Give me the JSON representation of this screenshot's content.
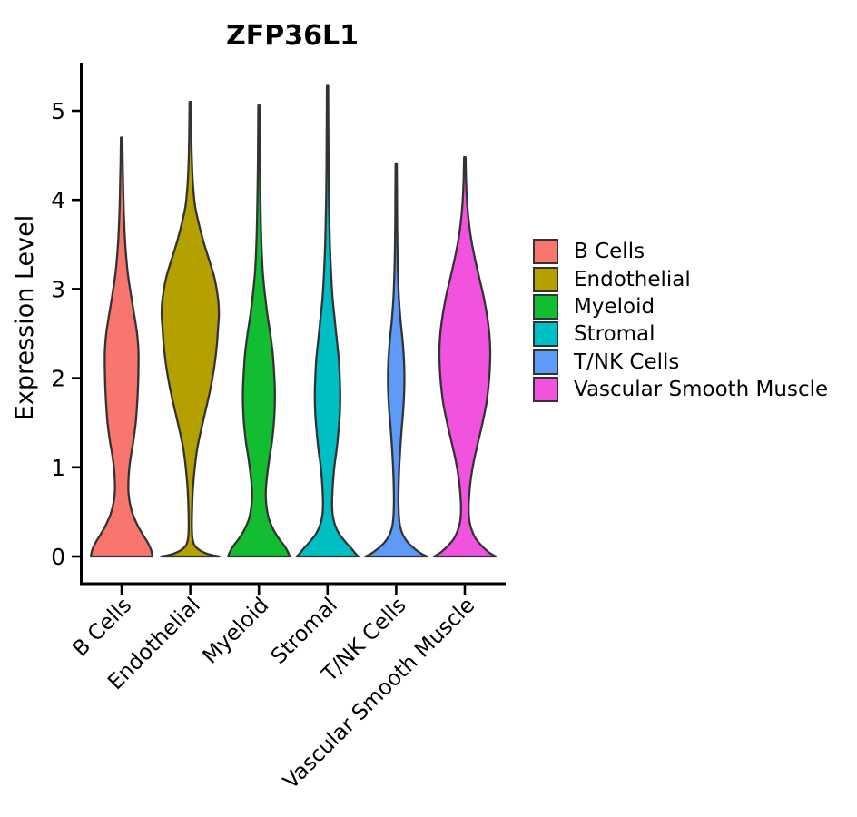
{
  "chart_data": {
    "type": "violin",
    "title": "ZFP36L1",
    "xlabel": "",
    "ylabel": "Expression Level",
    "categories": [
      "B Cells",
      "Endothelial",
      "Myeloid",
      "Stromal",
      "T/NK Cells",
      "Vascular Smooth Muscle"
    ],
    "y_ticks": [
      0,
      1,
      2,
      3,
      4,
      5
    ],
    "ylim": [
      0,
      5.5
    ],
    "grid": false,
    "legend_position": "right",
    "background_color": "#ffffff",
    "axis_color": "#000000",
    "outline_color": "#333333",
    "series": [
      {
        "name": "B Cells",
        "color": "#F8766D",
        "max_expression": 4.7,
        "min_expression": 0,
        "density_profile": [
          [
            4.7,
            0.8
          ],
          [
            4.4,
            1.2
          ],
          [
            4.1,
            1.8
          ],
          [
            3.8,
            2.6
          ],
          [
            3.5,
            4.0
          ],
          [
            3.2,
            6.5
          ],
          [
            2.95,
            10.0
          ],
          [
            2.7,
            14.0
          ],
          [
            2.5,
            17.0
          ],
          [
            2.3,
            18.5
          ],
          [
            2.1,
            18.5
          ],
          [
            1.9,
            18.0
          ],
          [
            1.7,
            17.0
          ],
          [
            1.5,
            15.5
          ],
          [
            1.3,
            13.0
          ],
          [
            1.15,
            10.5
          ],
          [
            1.0,
            8.5
          ],
          [
            0.85,
            7.5
          ],
          [
            0.72,
            7.5
          ],
          [
            0.6,
            9.0
          ],
          [
            0.48,
            12.0
          ],
          [
            0.36,
            17.0
          ],
          [
            0.25,
            23.0
          ],
          [
            0.15,
            29.0
          ],
          [
            0.07,
            32.5
          ],
          [
            0.0,
            34.0
          ]
        ]
      },
      {
        "name": "Endothelial",
        "color": "#B4A100",
        "max_expression": 5.1,
        "min_expression": 0,
        "density_profile": [
          [
            5.1,
            0.8
          ],
          [
            4.8,
            1.1
          ],
          [
            4.5,
            1.6
          ],
          [
            4.2,
            2.8
          ],
          [
            3.95,
            5.0
          ],
          [
            3.75,
            9.0
          ],
          [
            3.55,
            14.0
          ],
          [
            3.35,
            20.0
          ],
          [
            3.15,
            26.0
          ],
          [
            3.0,
            29.0
          ],
          [
            2.85,
            31.0
          ],
          [
            2.7,
            31.5
          ],
          [
            2.55,
            30.5
          ],
          [
            2.4,
            29.5
          ],
          [
            2.25,
            28.0
          ],
          [
            2.1,
            26.0
          ],
          [
            1.95,
            23.5
          ],
          [
            1.8,
            20.5
          ],
          [
            1.6,
            16.0
          ],
          [
            1.4,
            11.5
          ],
          [
            1.2,
            7.5
          ],
          [
            1.0,
            5.0
          ],
          [
            0.8,
            3.2
          ],
          [
            0.6,
            2.2
          ],
          [
            0.45,
            1.8
          ],
          [
            0.3,
            1.8
          ],
          [
            0.2,
            2.5
          ],
          [
            0.12,
            5.0
          ],
          [
            0.06,
            12.0
          ],
          [
            0.02,
            22.0
          ],
          [
            0.0,
            32.0
          ]
        ]
      },
      {
        "name": "Myeloid",
        "color": "#12BD31",
        "max_expression": 5.06,
        "min_expression": 0,
        "density_profile": [
          [
            5.06,
            0.7
          ],
          [
            4.7,
            0.9
          ],
          [
            4.4,
            1.1
          ],
          [
            4.1,
            1.5
          ],
          [
            3.8,
            2.0
          ],
          [
            3.5,
            2.8
          ],
          [
            3.2,
            4.2
          ],
          [
            2.95,
            6.5
          ],
          [
            2.7,
            9.5
          ],
          [
            2.5,
            12.5
          ],
          [
            2.3,
            15.0
          ],
          [
            2.1,
            16.5
          ],
          [
            1.9,
            17.5
          ],
          [
            1.7,
            17.5
          ],
          [
            1.5,
            16.5
          ],
          [
            1.3,
            14.5
          ],
          [
            1.1,
            11.5
          ],
          [
            0.95,
            9.5
          ],
          [
            0.8,
            8.0
          ],
          [
            0.68,
            7.5
          ],
          [
            0.55,
            8.5
          ],
          [
            0.42,
            11.0
          ],
          [
            0.3,
            16.0
          ],
          [
            0.2,
            22.0
          ],
          [
            0.12,
            28.0
          ],
          [
            0.05,
            32.0
          ],
          [
            0.0,
            34.0
          ]
        ]
      },
      {
        "name": "Stromal",
        "color": "#00BFC4",
        "max_expression": 5.28,
        "min_expression": 0,
        "density_profile": [
          [
            5.28,
            0.7
          ],
          [
            4.9,
            0.85
          ],
          [
            4.5,
            1.05
          ],
          [
            4.1,
            1.4
          ],
          [
            3.8,
            1.9
          ],
          [
            3.5,
            2.6
          ],
          [
            3.2,
            3.8
          ],
          [
            2.9,
            5.5
          ],
          [
            2.65,
            8.0
          ],
          [
            2.4,
            10.5
          ],
          [
            2.2,
            12.5
          ],
          [
            2.0,
            13.5
          ],
          [
            1.8,
            14.0
          ],
          [
            1.6,
            13.5
          ],
          [
            1.4,
            12.0
          ],
          [
            1.2,
            10.0
          ],
          [
            1.05,
            8.0
          ],
          [
            0.9,
            6.5
          ],
          [
            0.75,
            5.5
          ],
          [
            0.6,
            5.0
          ],
          [
            0.48,
            5.5
          ],
          [
            0.36,
            8.0
          ],
          [
            0.25,
            13.0
          ],
          [
            0.16,
            20.0
          ],
          [
            0.08,
            27.0
          ],
          [
            0.03,
            31.0
          ],
          [
            0.0,
            34.0
          ]
        ]
      },
      {
        "name": "T/NK Cells",
        "color": "#5E9BF8",
        "max_expression": 4.4,
        "min_expression": 0,
        "density_profile": [
          [
            4.4,
            0.7
          ],
          [
            4.1,
            0.85
          ],
          [
            3.8,
            1.0
          ],
          [
            3.5,
            1.3
          ],
          [
            3.2,
            1.9
          ],
          [
            2.9,
            3.0
          ],
          [
            2.65,
            4.8
          ],
          [
            2.45,
            6.8
          ],
          [
            2.25,
            8.3
          ],
          [
            2.05,
            9.0
          ],
          [
            1.85,
            8.8
          ],
          [
            1.65,
            7.8
          ],
          [
            1.45,
            6.2
          ],
          [
            1.25,
            4.8
          ],
          [
            1.05,
            3.6
          ],
          [
            0.9,
            3.0
          ],
          [
            0.75,
            2.6
          ],
          [
            0.6,
            2.5
          ],
          [
            0.45,
            3.0
          ],
          [
            0.33,
            4.5
          ],
          [
            0.23,
            8.0
          ],
          [
            0.15,
            13.5
          ],
          [
            0.08,
            21.0
          ],
          [
            0.03,
            28.0
          ],
          [
            0.0,
            34.0
          ]
        ]
      },
      {
        "name": "Vascular Smooth Muscle",
        "color": "#F153DE",
        "max_expression": 4.48,
        "min_expression": 0,
        "density_profile": [
          [
            4.48,
            0.8
          ],
          [
            4.2,
            1.4
          ],
          [
            3.95,
            2.6
          ],
          [
            3.7,
            5.0
          ],
          [
            3.5,
            8.0
          ],
          [
            3.3,
            12.0
          ],
          [
            3.1,
            16.5
          ],
          [
            2.9,
            21.0
          ],
          [
            2.7,
            24.5
          ],
          [
            2.5,
            27.0
          ],
          [
            2.3,
            28.0
          ],
          [
            2.1,
            27.5
          ],
          [
            1.9,
            26.0
          ],
          [
            1.7,
            23.5
          ],
          [
            1.5,
            19.5
          ],
          [
            1.3,
            15.0
          ],
          [
            1.1,
            10.5
          ],
          [
            0.95,
            7.8
          ],
          [
            0.8,
            5.8
          ],
          [
            0.65,
            4.6
          ],
          [
            0.52,
            4.2
          ],
          [
            0.4,
            5.0
          ],
          [
            0.3,
            7.5
          ],
          [
            0.2,
            12.0
          ],
          [
            0.12,
            18.5
          ],
          [
            0.05,
            26.0
          ],
          [
            0.0,
            34.0
          ]
        ]
      }
    ]
  }
}
